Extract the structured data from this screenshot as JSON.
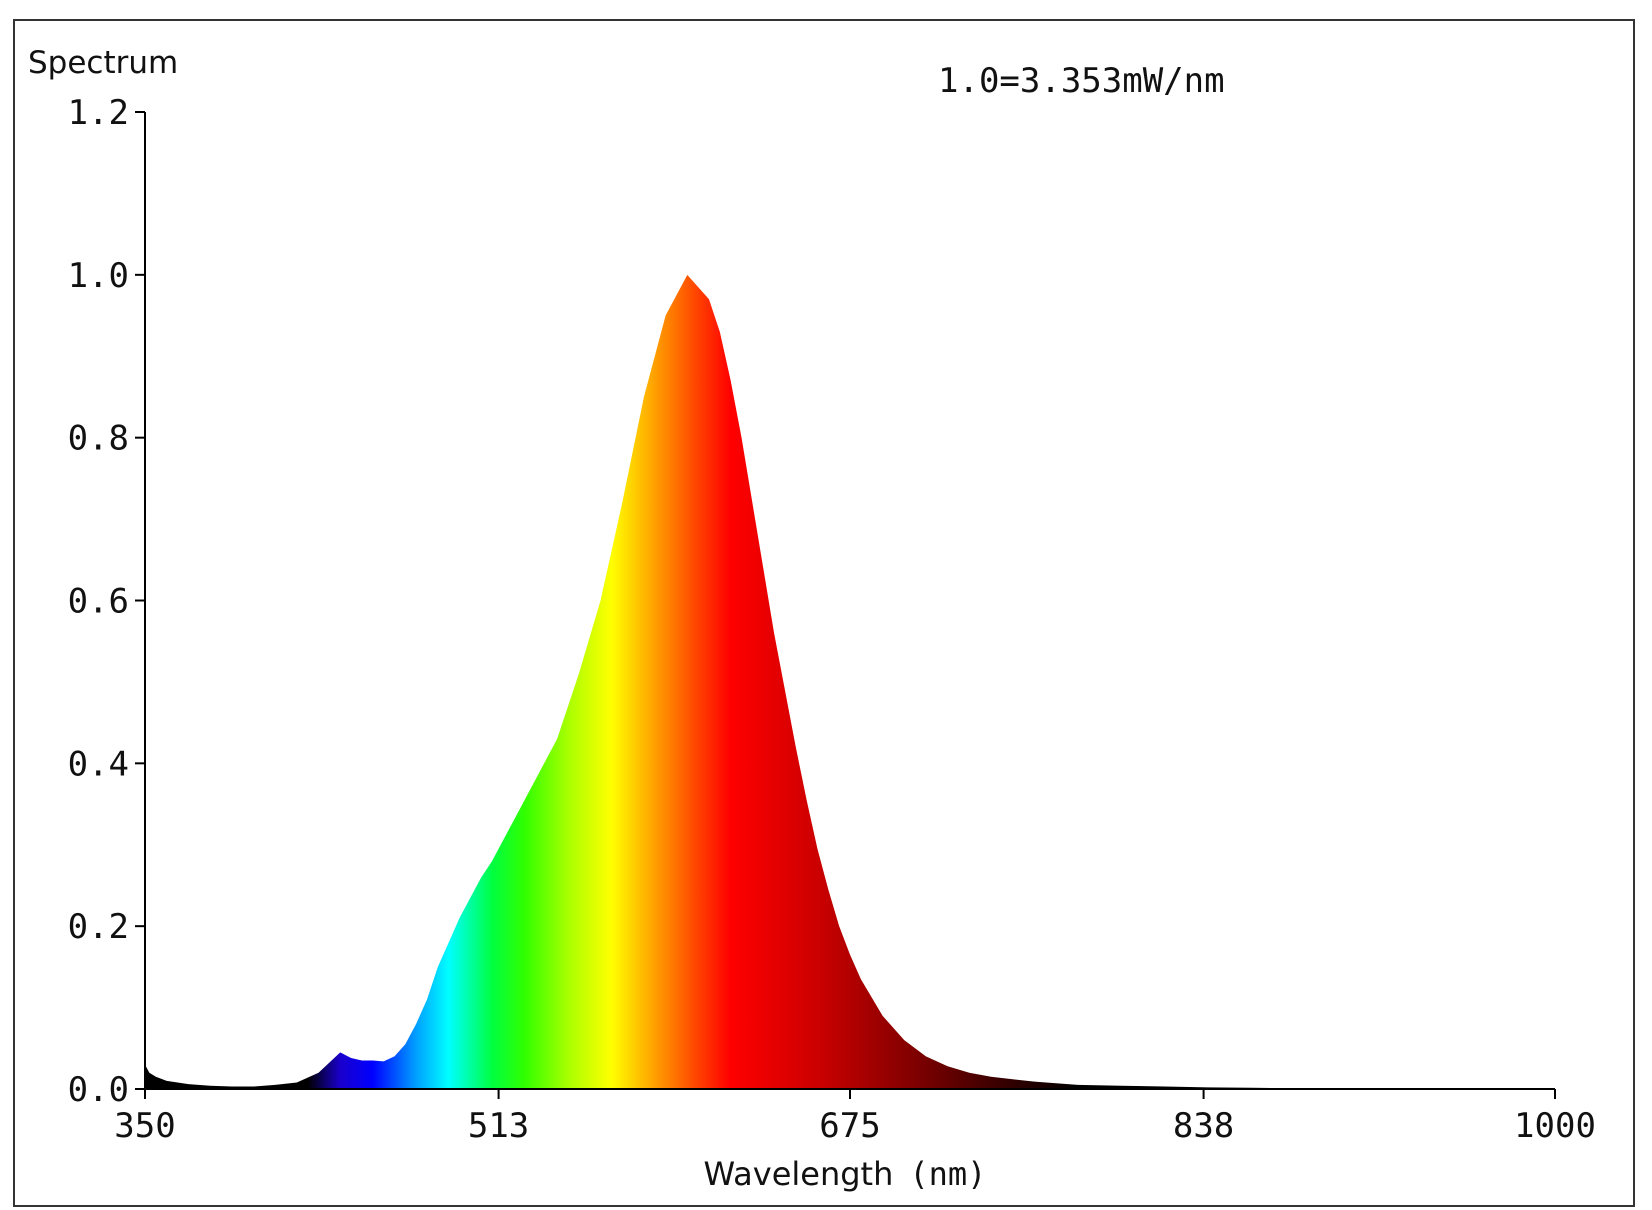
{
  "chart_data": {
    "type": "area",
    "title": "Spectrum",
    "annotation": "1.0=3.353mW/nm",
    "xlabel_main": "Wavelength",
    "xlabel_unit": "(nm)",
    "xlim": [
      350,
      1000
    ],
    "ylim": [
      0,
      1.2
    ],
    "x_ticks": [
      350,
      513,
      675,
      838,
      1000
    ],
    "x_tick_labels": [
      "350",
      "513",
      "675",
      "838",
      "1000"
    ],
    "y_ticks": [
      0.0,
      0.2,
      0.4,
      0.6,
      0.8,
      1.0,
      1.2
    ],
    "y_tick_labels": [
      "0.0",
      "0.2",
      "0.4",
      "0.6",
      "0.8",
      "1.0",
      "1.2"
    ],
    "grid": false,
    "series": [
      {
        "x": [
          350,
          352,
          355,
          360,
          370,
          380,
          390,
          400,
          410,
          420,
          430,
          440,
          445,
          450,
          455,
          460,
          465,
          470,
          475,
          480,
          485,
          490,
          495,
          500,
          505,
          510,
          515,
          520,
          530,
          540,
          550,
          560,
          570,
          580,
          590,
          600,
          610,
          615,
          620,
          625,
          630,
          635,
          640,
          645,
          650,
          655,
          660,
          665,
          670,
          675,
          680,
          690,
          700,
          710,
          720,
          730,
          740,
          750,
          760,
          770,
          780,
          800,
          820,
          840,
          860,
          880,
          900,
          920,
          940,
          960,
          980,
          1000
        ],
        "y": [
          0.03,
          0.02,
          0.015,
          0.01,
          0.006,
          0.004,
          0.003,
          0.003,
          0.005,
          0.008,
          0.02,
          0.045,
          0.038,
          0.035,
          0.035,
          0.034,
          0.04,
          0.055,
          0.08,
          0.11,
          0.15,
          0.18,
          0.21,
          0.235,
          0.26,
          0.28,
          0.305,
          0.33,
          0.38,
          0.43,
          0.51,
          0.6,
          0.72,
          0.85,
          0.95,
          1.0,
          0.97,
          0.93,
          0.87,
          0.8,
          0.72,
          0.64,
          0.56,
          0.49,
          0.42,
          0.355,
          0.295,
          0.245,
          0.2,
          0.165,
          0.135,
          0.09,
          0.06,
          0.04,
          0.028,
          0.02,
          0.015,
          0.012,
          0.009,
          0.007,
          0.005,
          0.004,
          0.003,
          0.002,
          0.0015,
          0.001,
          0.001,
          0.001,
          0.0008,
          0.0008,
          0.0006,
          0.0005
        ]
      }
    ]
  }
}
